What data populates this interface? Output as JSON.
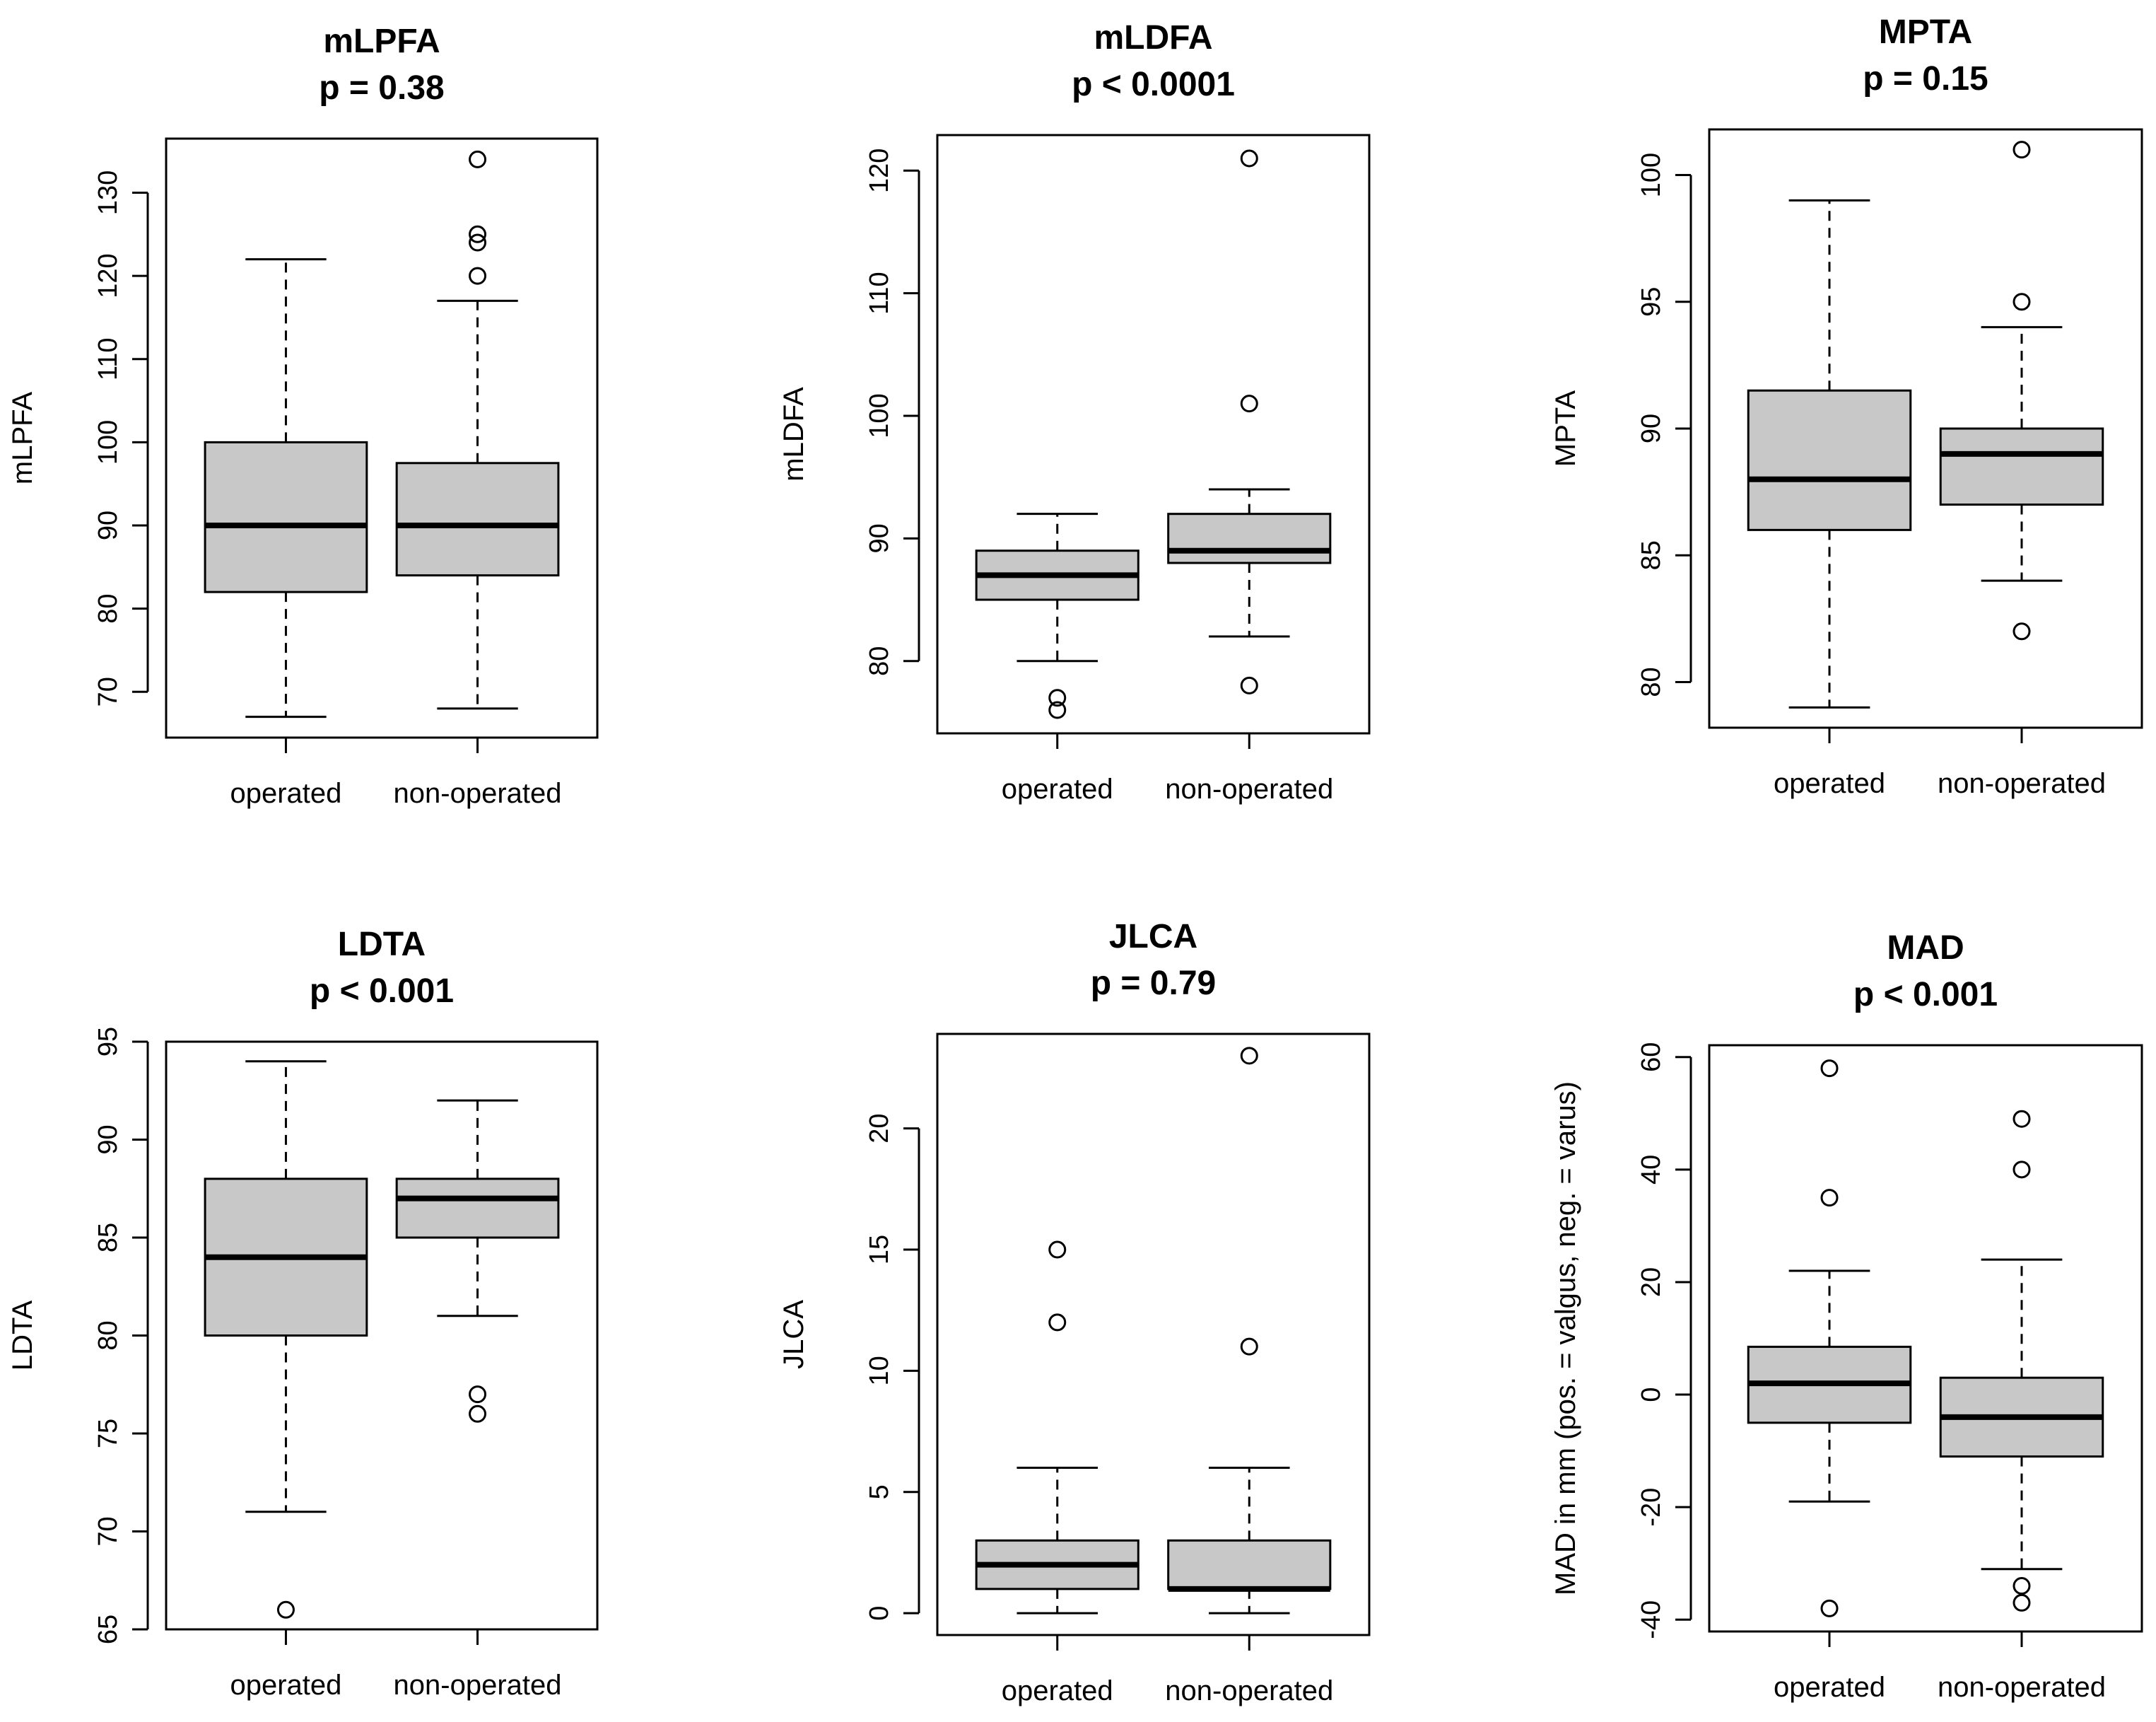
{
  "colors": {
    "box_fill": "#c8c8c8",
    "stroke": "#000000",
    "background": "#ffffff"
  },
  "chart_data": [
    {
      "type": "boxplot",
      "title": "mLPFA",
      "subtitle": "p = 0.38",
      "xlabel": "",
      "ylabel": "mLPFA",
      "ylim": [
        64.5,
        136.5
      ],
      "yticks": [
        70,
        80,
        90,
        100,
        110,
        120,
        130
      ],
      "categories": [
        "operated",
        "non-operated"
      ],
      "boxes": [
        {
          "name": "operated",
          "whisker_low": 67,
          "q1": 82,
          "median": 90,
          "q3": 100,
          "whisker_high": 122,
          "outliers": []
        },
        {
          "name": "non-operated",
          "whisker_low": 68,
          "q1": 84,
          "median": 90,
          "q3": 97.5,
          "whisker_high": 117,
          "outliers": [
            120,
            124,
            125,
            134
          ]
        }
      ]
    },
    {
      "type": "boxplot",
      "title": "mLDFA",
      "subtitle": "p < 0.0001",
      "xlabel": "",
      "ylabel": "mLDFA",
      "ylim": [
        74.1,
        122.9
      ],
      "yticks": [
        80,
        90,
        100,
        110,
        120
      ],
      "categories": [
        "operated",
        "non-operated"
      ],
      "boxes": [
        {
          "name": "operated",
          "whisker_low": 80,
          "q1": 85,
          "median": 87,
          "q3": 89,
          "whisker_high": 92,
          "outliers": [
            76,
            77
          ]
        },
        {
          "name": "non-operated",
          "whisker_low": 82,
          "q1": 88,
          "median": 89,
          "q3": 92,
          "whisker_high": 94,
          "outliers": [
            78,
            101,
            121
          ]
        }
      ]
    },
    {
      "type": "boxplot",
      "title": "MPTA",
      "subtitle": "p = 0.15",
      "xlabel": "",
      "ylabel": "MPTA",
      "ylim": [
        78.2,
        101.8
      ],
      "yticks": [
        80,
        85,
        90,
        95,
        100
      ],
      "categories": [
        "operated",
        "non-operated"
      ],
      "boxes": [
        {
          "name": "operated",
          "whisker_low": 79,
          "q1": 86,
          "median": 88,
          "q3": 91.5,
          "whisker_high": 99,
          "outliers": []
        },
        {
          "name": "non-operated",
          "whisker_low": 84,
          "q1": 87,
          "median": 89,
          "q3": 90,
          "whisker_high": 94,
          "outliers": [
            82,
            95,
            101
          ]
        }
      ]
    },
    {
      "type": "boxplot",
      "title": "LDTA",
      "subtitle": "p < 0.001",
      "xlabel": "",
      "ylabel": "LDTA",
      "ylim": [
        65.0,
        95.0
      ],
      "yticks": [
        65,
        70,
        75,
        80,
        85,
        90,
        95
      ],
      "categories": [
        "operated",
        "non-operated"
      ],
      "boxes": [
        {
          "name": "operated",
          "whisker_low": 71,
          "q1": 80,
          "median": 84,
          "q3": 88,
          "whisker_high": 94,
          "outliers": [
            66
          ]
        },
        {
          "name": "non-operated",
          "whisker_low": 81,
          "q1": 85,
          "median": 87,
          "q3": 88,
          "whisker_high": 92,
          "outliers": [
            76,
            77
          ]
        }
      ]
    },
    {
      "type": "boxplot",
      "title": "JLCA",
      "subtitle": "p = 0.79",
      "xlabel": "",
      "ylabel": "JLCA",
      "ylim": [
        -0.9,
        23.9
      ],
      "yticks": [
        0,
        5,
        10,
        15,
        20
      ],
      "categories": [
        "operated",
        "non-operated"
      ],
      "boxes": [
        {
          "name": "operated",
          "whisker_low": 0,
          "q1": 1,
          "median": 2,
          "q3": 3,
          "whisker_high": 6,
          "outliers": [
            12,
            15
          ]
        },
        {
          "name": "non-operated",
          "whisker_low": 0,
          "q1": 1,
          "median": 1,
          "q3": 3,
          "whisker_high": 6,
          "outliers": [
            11,
            23
          ]
        }
      ]
    },
    {
      "type": "boxplot",
      "title": "MAD",
      "subtitle": "p < 0.001",
      "xlabel": "",
      "ylabel": "MAD in mm (pos. = valgus, neg. = varus)",
      "ylim": [
        -42.1,
        62.1
      ],
      "yticks": [
        -40,
        -20,
        0,
        20,
        40,
        60
      ],
      "categories": [
        "operated",
        "non-operated"
      ],
      "boxes": [
        {
          "name": "operated",
          "whisker_low": -19,
          "q1": -5,
          "median": 2,
          "q3": 8.5,
          "whisker_high": 22,
          "outliers": [
            -38,
            35,
            58
          ]
        },
        {
          "name": "non-operated",
          "whisker_low": -31,
          "q1": -11,
          "median": -4,
          "q3": 3,
          "whisker_high": 24,
          "outliers": [
            -37,
            -34,
            40,
            49
          ]
        }
      ]
    }
  ]
}
